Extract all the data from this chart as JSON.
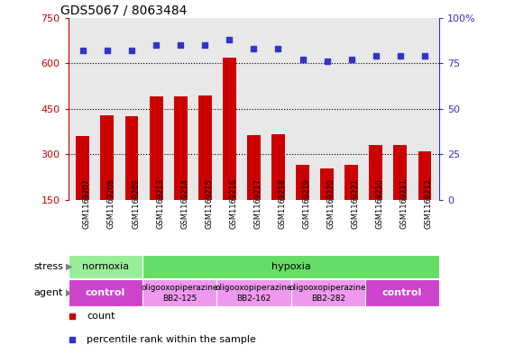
{
  "title": "GDS5067 / 8063484",
  "samples": [
    "GSM1169207",
    "GSM1169208",
    "GSM1169209",
    "GSM1169213",
    "GSM1169214",
    "GSM1169215",
    "GSM1169216",
    "GSM1169217",
    "GSM1169218",
    "GSM1169219",
    "GSM1169220",
    "GSM1169221",
    "GSM1169210",
    "GSM1169211",
    "GSM1169212"
  ],
  "counts": [
    360,
    430,
    425,
    490,
    490,
    495,
    620,
    365,
    368,
    265,
    255,
    265,
    330,
    330,
    310
  ],
  "percentiles": [
    82,
    82,
    82,
    85,
    85,
    85,
    88,
    83,
    83,
    77,
    76,
    77,
    79,
    79,
    79
  ],
  "ymin": 150,
  "ymax": 750,
  "yticks": [
    150,
    300,
    450,
    600,
    750
  ],
  "right_yticks": [
    0,
    25,
    50,
    75,
    100
  ],
  "right_yticklabels": [
    "0",
    "25",
    "50",
    "75",
    "100%"
  ],
  "bar_color": "#cc0000",
  "dot_color": "#3333cc",
  "plot_bg": "#e8e8e8",
  "xlabel_bg": "#d0d0d0",
  "stress_row": [
    {
      "label": "normoxia",
      "start": 0,
      "end": 3,
      "color": "#99ee99"
    },
    {
      "label": "hypoxia",
      "start": 3,
      "end": 15,
      "color": "#66dd66"
    }
  ],
  "agent_row": [
    {
      "start": 0,
      "end": 3,
      "color": "#cc44cc",
      "text_lines": [
        "control"
      ]
    },
    {
      "start": 3,
      "end": 6,
      "color": "#ee99ee",
      "text_lines": [
        "oligooxopiperazine",
        "BB2-125"
      ]
    },
    {
      "start": 6,
      "end": 9,
      "color": "#ee99ee",
      "text_lines": [
        "oligooxopiperazine",
        "BB2-162"
      ]
    },
    {
      "start": 9,
      "end": 12,
      "color": "#ee99ee",
      "text_lines": [
        "oligooxopiperazine",
        "BB2-282"
      ]
    },
    {
      "start": 12,
      "end": 15,
      "color": "#cc44cc",
      "text_lines": [
        "control"
      ]
    }
  ],
  "legend_items": [
    {
      "label": "count",
      "color": "#cc0000",
      "marker": "s"
    },
    {
      "label": "percentile rank within the sample",
      "color": "#3333cc",
      "marker": "s"
    }
  ],
  "grid_yticks": [
    300,
    450,
    600
  ]
}
